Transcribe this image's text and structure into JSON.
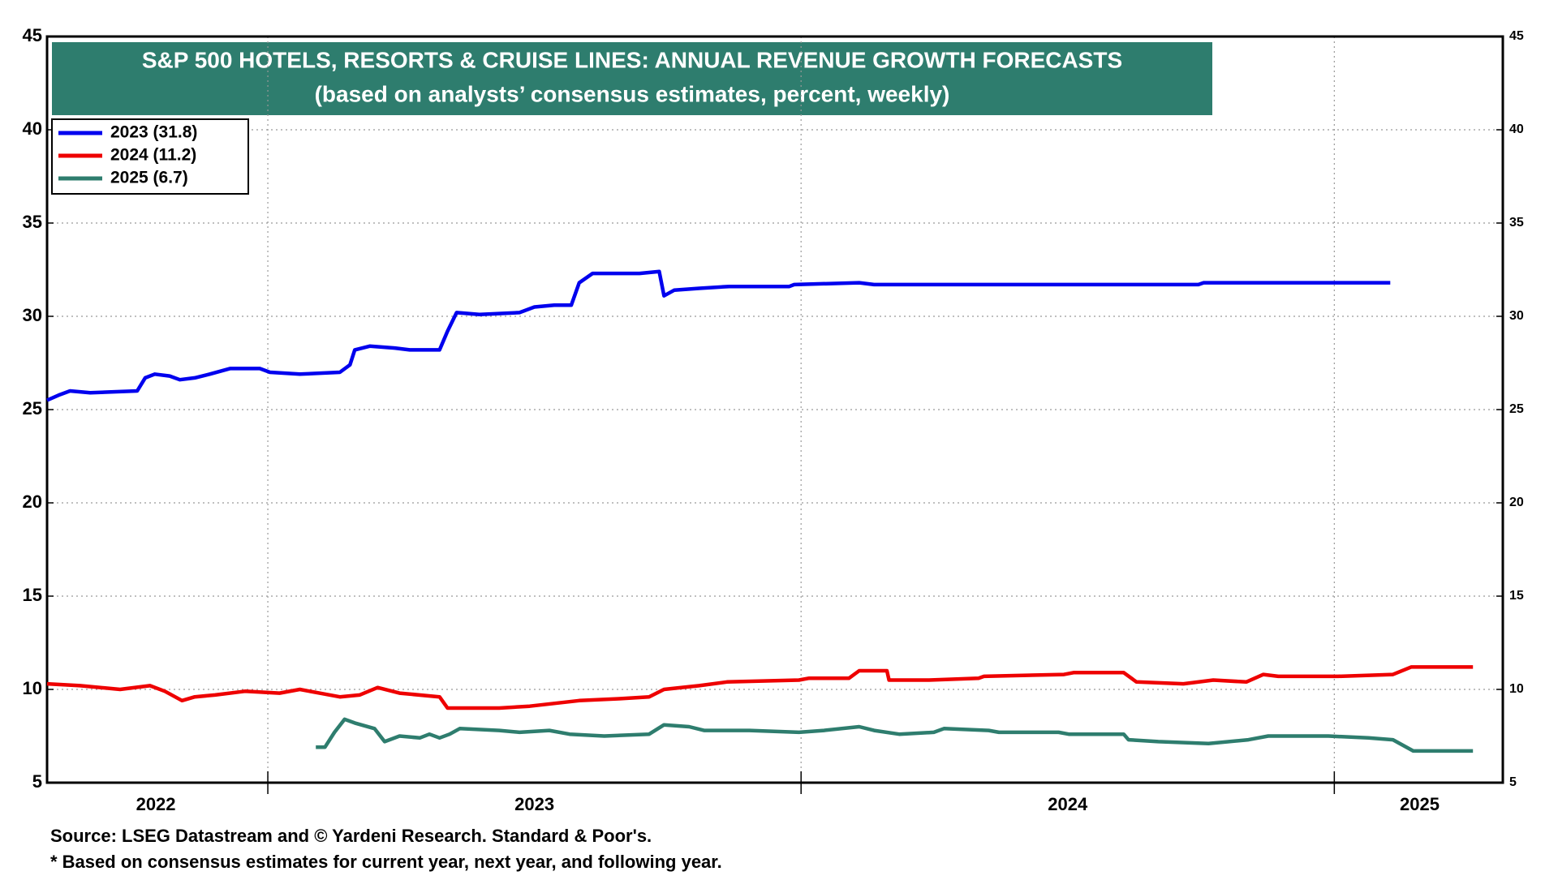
{
  "chart_data": {
    "type": "line",
    "title": "S&P 500 HOTELS, RESORTS & CRUISE LINES: ANNUAL REVENUE GROWTH FORECASTS",
    "subtitle": "(based on analysts’ consensus estimates, percent, weekly)",
    "source": "Source: LSEG Datastream and © Yardeni Research. Standard & Poor's.",
    "footnote": "* Based on consensus estimates for current year, next year, and following year.",
    "xlim": [
      2022.586,
      2025.316
    ],
    "xticks": [
      {
        "value": 2022.79,
        "label": "2022"
      },
      {
        "value": 2023.5,
        "label": "2023"
      },
      {
        "value": 2024.5,
        "label": "2024"
      },
      {
        "value": 2025.16,
        "label": "2025"
      }
    ],
    "x_major_ticks": [
      2023,
      2024,
      2025
    ],
    "ylim": [
      5,
      45
    ],
    "yticks": [
      5,
      10,
      15,
      20,
      25,
      30,
      35,
      40,
      45
    ],
    "grid": true,
    "legend": "upper-left",
    "series": [
      {
        "name": "2023 (31.8)",
        "color": "#0000ee",
        "x": [
          2022.586,
          2022.61,
          2022.629,
          2022.667,
          2022.755,
          2022.77,
          2022.788,
          2022.816,
          2022.835,
          2022.863,
          2022.891,
          2022.929,
          2022.985,
          2023.004,
          2023.06,
          2023.135,
          2023.154,
          2023.163,
          2023.191,
          2023.238,
          2023.266,
          2023.322,
          2023.337,
          2023.354,
          2023.397,
          2023.472,
          2023.5,
          2023.537,
          2023.569,
          2023.584,
          2023.609,
          2023.697,
          2023.734,
          2023.743,
          2023.762,
          2023.809,
          2023.865,
          2023.978,
          2023.987,
          2024.109,
          2024.137,
          2024.146,
          2024.745,
          2024.755,
          2025.105
        ],
        "values": [
          25.5,
          25.8,
          26.0,
          25.9,
          26.0,
          26.7,
          26.9,
          26.8,
          26.6,
          26.7,
          26.9,
          27.2,
          27.2,
          27.0,
          26.9,
          27.0,
          27.4,
          28.2,
          28.4,
          28.3,
          28.2,
          28.2,
          29.2,
          30.2,
          30.1,
          30.2,
          30.5,
          30.6,
          30.6,
          31.8,
          32.3,
          32.3,
          32.4,
          31.1,
          31.4,
          31.5,
          31.6,
          31.6,
          31.7,
          31.8,
          31.7,
          31.7,
          31.7,
          31.8,
          31.8
        ]
      },
      {
        "name": "2024 (11.2)",
        "color": "#ee0000",
        "x": [
          2022.586,
          2022.648,
          2022.723,
          2022.779,
          2022.807,
          2022.839,
          2022.863,
          2022.901,
          2022.957,
          2023.022,
          2023.06,
          2023.097,
          2023.135,
          2023.172,
          2023.206,
          2023.247,
          2023.322,
          2023.337,
          2023.434,
          2023.491,
          2023.584,
          2023.659,
          2023.715,
          2023.743,
          2023.809,
          2023.861,
          2023.996,
          2024.015,
          2024.09,
          2024.109,
          2024.161,
          2024.165,
          2024.24,
          2024.333,
          2024.343,
          2024.493,
          2024.511,
          2024.605,
          2024.629,
          2024.717,
          2024.773,
          2024.835,
          2024.867,
          2024.895,
          2025.007,
          2025.11,
          2025.144,
          2025.26
        ],
        "values": [
          10.3,
          10.2,
          10.0,
          10.2,
          9.9,
          9.4,
          9.6,
          9.7,
          9.9,
          9.8,
          10.0,
          9.8,
          9.6,
          9.7,
          10.1,
          9.8,
          9.6,
          9.0,
          9.0,
          9.1,
          9.4,
          9.5,
          9.6,
          10.0,
          10.2,
          10.4,
          10.5,
          10.6,
          10.6,
          11.0,
          11.0,
          10.5,
          10.5,
          10.6,
          10.7,
          10.8,
          10.9,
          10.9,
          10.4,
          10.3,
          10.5,
          10.4,
          10.8,
          10.7,
          10.7,
          10.8,
          11.2,
          11.2
        ]
      },
      {
        "name": "2025 (6.7)",
        "color": "#2e7d6e",
        "x": [
          2023.09,
          2023.107,
          2023.125,
          2023.144,
          2023.163,
          2023.2,
          2023.219,
          2023.247,
          2023.285,
          2023.303,
          2023.322,
          2023.341,
          2023.36,
          2023.434,
          2023.472,
          2023.528,
          2023.566,
          2023.631,
          2023.715,
          2023.743,
          2023.79,
          2023.818,
          2023.903,
          2023.996,
          2024.043,
          2024.109,
          2024.137,
          2024.184,
          2024.249,
          2024.268,
          2024.352,
          2024.371,
          2024.483,
          2024.502,
          2024.605,
          2024.614,
          2024.67,
          2024.764,
          2024.839,
          2024.876,
          2024.933,
          2024.989,
          2025.064,
          2025.11,
          2025.129,
          2025.148,
          2025.26
        ],
        "values": [
          6.9,
          6.9,
          7.7,
          8.4,
          8.2,
          7.9,
          7.2,
          7.5,
          7.4,
          7.6,
          7.4,
          7.6,
          7.9,
          7.8,
          7.7,
          7.8,
          7.6,
          7.5,
          7.6,
          8.1,
          8.0,
          7.8,
          7.8,
          7.7,
          7.8,
          8.0,
          7.8,
          7.6,
          7.7,
          7.9,
          7.8,
          7.7,
          7.7,
          7.6,
          7.6,
          7.3,
          7.2,
          7.1,
          7.3,
          7.5,
          7.5,
          7.5,
          7.4,
          7.3,
          7.0,
          6.7,
          6.7
        ]
      }
    ]
  }
}
